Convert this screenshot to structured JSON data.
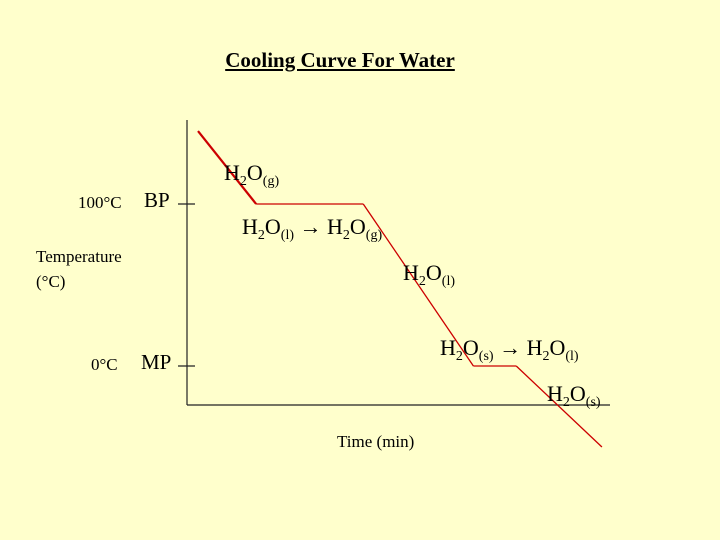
{
  "title": "Cooling Curve  For Water",
  "ylabel_line1": "Temperature",
  "ylabel_line2": "(°C)",
  "xlabel": "Time (min)",
  "ticks": {
    "bp_value": "100°C",
    "bp_label": "BP",
    "mp_value": "0°C",
    "mp_label": "MP"
  },
  "formulas": {
    "gas": {
      "base": "H",
      "two": "2",
      "o": "O",
      "state": "(g)"
    },
    "cond_left": {
      "base": "H",
      "two": "2",
      "o": "O",
      "state": "(l)"
    },
    "arrow": "→",
    "cond_right": {
      "base": "H",
      "two": "2",
      "o": "O",
      "state": "(g)"
    },
    "liquid": {
      "base": "H",
      "two": "2",
      "o": "O",
      "state": "(l)"
    },
    "freeze_left": {
      "base": "H",
      "two": "2",
      "o": "O",
      "state": "(s)"
    },
    "freeze_right": {
      "base": "H",
      "two": "2",
      "o": "O",
      "state": "(l)"
    },
    "solid": {
      "base": "H",
      "two": "2",
      "o": "O",
      "state": "(s)"
    }
  },
  "colors": {
    "background": "#FFFFCC",
    "curve": "#CC0000"
  },
  "chart_data": {
    "type": "line",
    "title": "Cooling Curve  For Water",
    "xlabel": "Time (min)",
    "ylabel": "Temperature (°C)",
    "ytick_labels": [
      "100°C",
      "0°C"
    ],
    "series": [
      {
        "x": [
          0,
          1.9,
          5.4,
          9.0,
          10.4,
          13.2
        ],
        "y": [
          145,
          100,
          100,
          0,
          0,
          -50
        ]
      }
    ],
    "segments": [
      "cooling gas",
      "condensation H2O(l) → H2O(g)",
      "cooling liquid",
      "freezing H2O(s) → H2O(l)",
      "cooling solid"
    ],
    "grid": false
  }
}
